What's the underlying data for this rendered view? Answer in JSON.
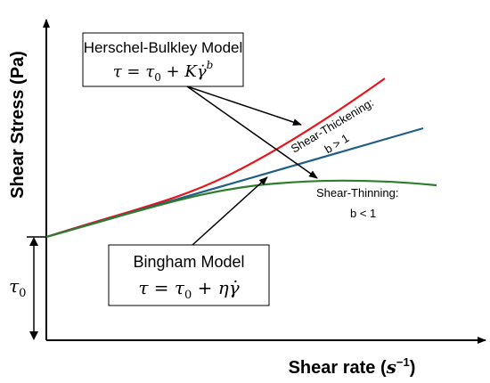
{
  "axes": {
    "y_label": "Shear Stress (Pa)",
    "x_label_text": "Shear rate (",
    "x_label_unit": "s",
    "x_label_exp": "−1",
    "x_label_close": ")"
  },
  "tau0": {
    "symbol": "τ",
    "subscript": "0"
  },
  "herschel_box": {
    "title": "Herschel-Bulkley Model",
    "eq_lhs": "τ",
    "eq_eq": " = ",
    "eq_t": "τ",
    "eq_sub": "0",
    "eq_plus": " + ",
    "eq_k": "K",
    "eq_gdot": "γ̇",
    "eq_exp": "b"
  },
  "bingham_box": {
    "title": "Bingham Model",
    "eq_lhs": "τ",
    "eq_eq": " = ",
    "eq_t": "τ",
    "eq_sub": "0",
    "eq_plus": " + ",
    "eq_eta": "η",
    "eq_gdot": "γ̇"
  },
  "annotations": {
    "thickening_label": "Shear-Thickening:",
    "thickening_cond": "b > 1",
    "thinning_label": "Shear-Thinning:",
    "thinning_cond": "b < 1"
  },
  "colors": {
    "thickening": "#e8141b",
    "bingham": "#1f5f85",
    "thinning": "#2e7d2e",
    "axis": "#000000"
  }
}
